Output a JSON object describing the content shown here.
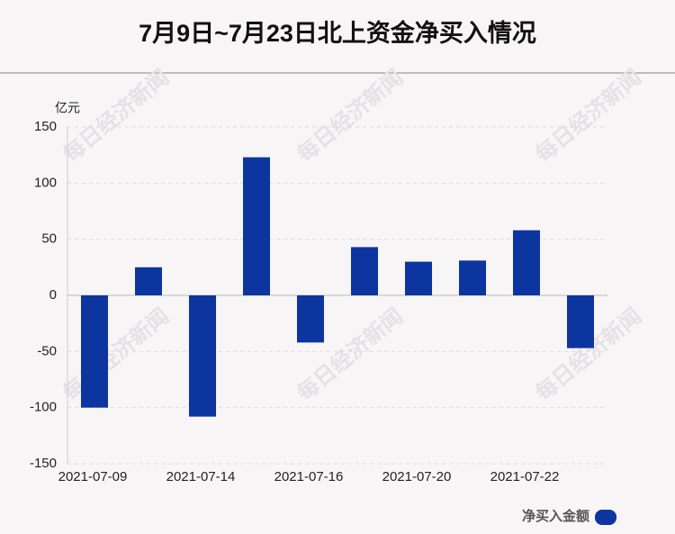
{
  "chart_data": {
    "type": "bar",
    "title": "7月9日~7月23日北上资金净买入情况",
    "unit": "亿元",
    "categories": [
      "2021-07-09",
      null,
      "2021-07-14",
      null,
      "2021-07-16",
      null,
      "2021-07-20",
      null,
      "2021-07-22",
      null
    ],
    "series": [
      {
        "name": "净买入金额",
        "color": "#0d35a0",
        "values": [
          -100,
          25,
          -108,
          123,
          -42,
          43,
          30,
          31,
          58,
          -47
        ]
      }
    ],
    "ylim": [
      -150,
      150
    ],
    "yticks": [
      -150,
      -100,
      -50,
      0,
      50,
      100,
      150
    ],
    "grid": true,
    "legend": "bottom-right",
    "watermark": "每日经济新闻"
  }
}
